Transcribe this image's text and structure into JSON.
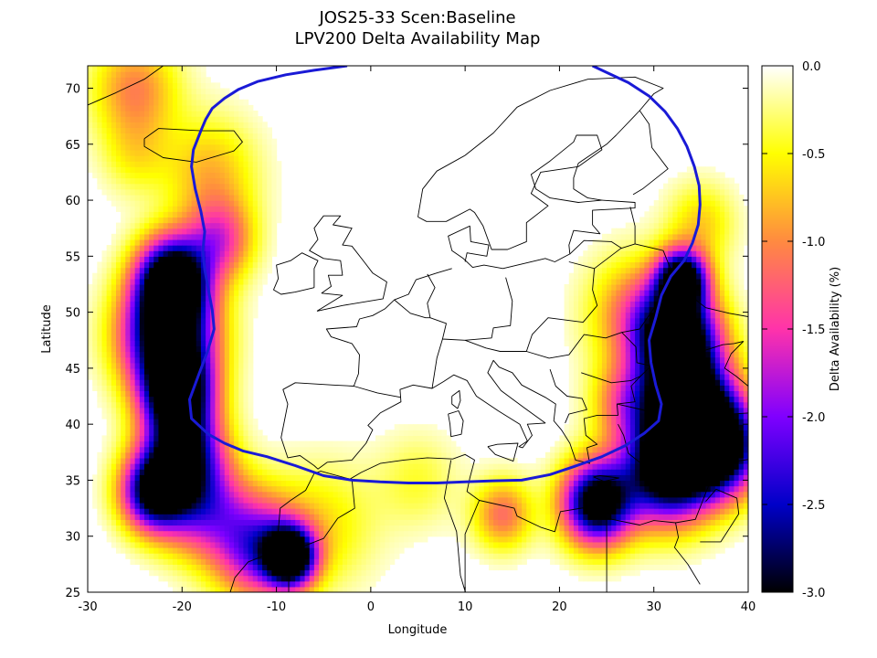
{
  "title": "JOS25-33 Scen:Baseline",
  "subtitle": "LPV200 Delta Availability Map",
  "chart_data": {
    "type": "heatmap",
    "title": "JOS25-33 Scen:Baseline",
    "subtitle": "LPV200 Delta Availability Map",
    "xlabel": "Longitude",
    "ylabel": "Latitude",
    "xlim": [
      -30,
      40
    ],
    "ylim": [
      25,
      72
    ],
    "xticks": [
      "-30",
      "-20",
      "-10",
      "0",
      "10",
      "20",
      "30",
      "40"
    ],
    "yticks": [
      "25",
      "30",
      "35",
      "40",
      "45",
      "50",
      "55",
      "60",
      "65",
      "70"
    ],
    "colorbar": {
      "label": "Delta Availability (%)",
      "range": [
        -3.0,
        0.0
      ],
      "ticks": [
        "0.0",
        "-0.5",
        "-1.0",
        "-1.5",
        "-2.0",
        "-2.5",
        "-3.0"
      ],
      "colors": [
        "#000000",
        "#0000c8",
        "#7f00ff",
        "#ff33aa",
        "#ff8a40",
        "#ffff00",
        "#ffffff"
      ]
    },
    "service_area_color": "#1a1ad6",
    "service_area_boundary": [
      [
        -2.5,
        72
      ],
      [
        -6,
        71.6
      ],
      [
        -9,
        71.2
      ],
      [
        -12,
        70.6
      ],
      [
        -14,
        69.9
      ],
      [
        -15.5,
        69.1
      ],
      [
        -16.8,
        68.2
      ],
      [
        -17.5,
        67.2
      ],
      [
        -18,
        66.2
      ],
      [
        -18.8,
        64.5
      ],
      [
        -19,
        63
      ],
      [
        -18.6,
        61
      ],
      [
        -18,
        59
      ],
      [
        -17.6,
        57.2
      ],
      [
        -17.8,
        55.5
      ],
      [
        -17.6,
        53.8
      ],
      [
        -17.2,
        52
      ],
      [
        -16.8,
        50.2
      ],
      [
        -16.6,
        48.5
      ],
      [
        -17.3,
        46.5
      ],
      [
        -18.2,
        44.5
      ],
      [
        -19.2,
        42.2
      ],
      [
        -19,
        40.5
      ],
      [
        -17.2,
        39.1
      ],
      [
        -15.5,
        38.3
      ],
      [
        -13.5,
        37.6
      ],
      [
        -11,
        37.1
      ],
      [
        -8,
        36.3
      ],
      [
        -5,
        35.4
      ],
      [
        -2,
        35
      ],
      [
        1,
        34.85
      ],
      [
        4,
        34.75
      ],
      [
        7,
        34.75
      ],
      [
        10,
        34.85
      ],
      [
        13,
        34.95
      ],
      [
        16,
        35
      ],
      [
        19,
        35.5
      ],
      [
        21.5,
        36.2
      ],
      [
        24.5,
        37.1
      ],
      [
        27,
        38.1
      ],
      [
        29,
        39.2
      ],
      [
        30.5,
        40.3
      ],
      [
        30.8,
        41.8
      ],
      [
        30.2,
        43.5
      ],
      [
        29.7,
        45.5
      ],
      [
        29.5,
        47.5
      ],
      [
        30.2,
        49.5
      ],
      [
        30.8,
        51.5
      ],
      [
        31.8,
        53.2
      ],
      [
        33.2,
        54.6
      ],
      [
        34.1,
        56.2
      ],
      [
        34.7,
        57.8
      ],
      [
        34.9,
        59.6
      ],
      [
        34.8,
        61.3
      ],
      [
        34.3,
        63
      ],
      [
        33.5,
        64.8
      ],
      [
        32.5,
        66.4
      ],
      [
        31.2,
        67.9
      ],
      [
        29.5,
        69.3
      ],
      [
        27.3,
        70.5
      ],
      [
        24.5,
        71.6
      ],
      [
        23.5,
        72
      ]
    ],
    "degraded_regions": [
      {
        "lon": -21.5,
        "lat": 48,
        "sigma": 3.4,
        "value": -3.0
      },
      {
        "lon": -21.0,
        "lat": 53,
        "sigma": 2.6,
        "value": -3.0
      },
      {
        "lon": -20.5,
        "lat": 43,
        "sigma": 2.6,
        "value": -2.7
      },
      {
        "lon": -20.0,
        "lat": 38,
        "sigma": 2.8,
        "value": -2.3
      },
      {
        "lon": -23.0,
        "lat": 34,
        "sigma": 2.4,
        "value": -2.6
      },
      {
        "lon": -18.0,
        "lat": 33,
        "sigma": 3.2,
        "value": -1.6
      },
      {
        "lon": -8.5,
        "lat": 28.2,
        "sigma": 1.8,
        "value": -3.0
      },
      {
        "lon": -12.0,
        "lat": 29,
        "sigma": 3.2,
        "value": -1.8
      },
      {
        "lon": -16.0,
        "lat": 56.5,
        "sigma": 2.5,
        "value": -1.2
      },
      {
        "lon": -17.0,
        "lat": 62.5,
        "sigma": 3.5,
        "value": -0.7
      },
      {
        "lon": -25.0,
        "lat": 70.0,
        "sigma": 3.2,
        "value": -0.9
      },
      {
        "lon": -25.0,
        "lat": 64.0,
        "sigma": 2.5,
        "value": -0.4
      },
      {
        "lon": -5.0,
        "lat": 31.0,
        "sigma": 4.0,
        "value": -0.5
      },
      {
        "lon": 32.5,
        "lat": 48,
        "sigma": 3.0,
        "value": -3.0
      },
      {
        "lon": 33.5,
        "lat": 42,
        "sigma": 3.3,
        "value": -3.0
      },
      {
        "lon": 31.5,
        "lat": 36,
        "sigma": 3.3,
        "value": -3.0
      },
      {
        "lon": 24.0,
        "lat": 33,
        "sigma": 2.6,
        "value": -3.0
      },
      {
        "lon": 37.0,
        "lat": 38,
        "sigma": 3.0,
        "value": -3.0
      },
      {
        "lon": 33.0,
        "lat": 53,
        "sigma": 1.8,
        "value": -2.8
      },
      {
        "lon": 28.0,
        "lat": 50,
        "sigma": 3.5,
        "value": -0.9
      },
      {
        "lon": 27.0,
        "lat": 42,
        "sigma": 2.5,
        "value": -0.9
      },
      {
        "lon": 35.0,
        "lat": 58,
        "sigma": 2.5,
        "value": -0.6
      },
      {
        "lon": 14.0,
        "lat": 32,
        "sigma": 2.2,
        "value": -1.0
      },
      {
        "lon": 5.0,
        "lat": 35,
        "sigma": 3.0,
        "value": -0.35
      }
    ]
  }
}
